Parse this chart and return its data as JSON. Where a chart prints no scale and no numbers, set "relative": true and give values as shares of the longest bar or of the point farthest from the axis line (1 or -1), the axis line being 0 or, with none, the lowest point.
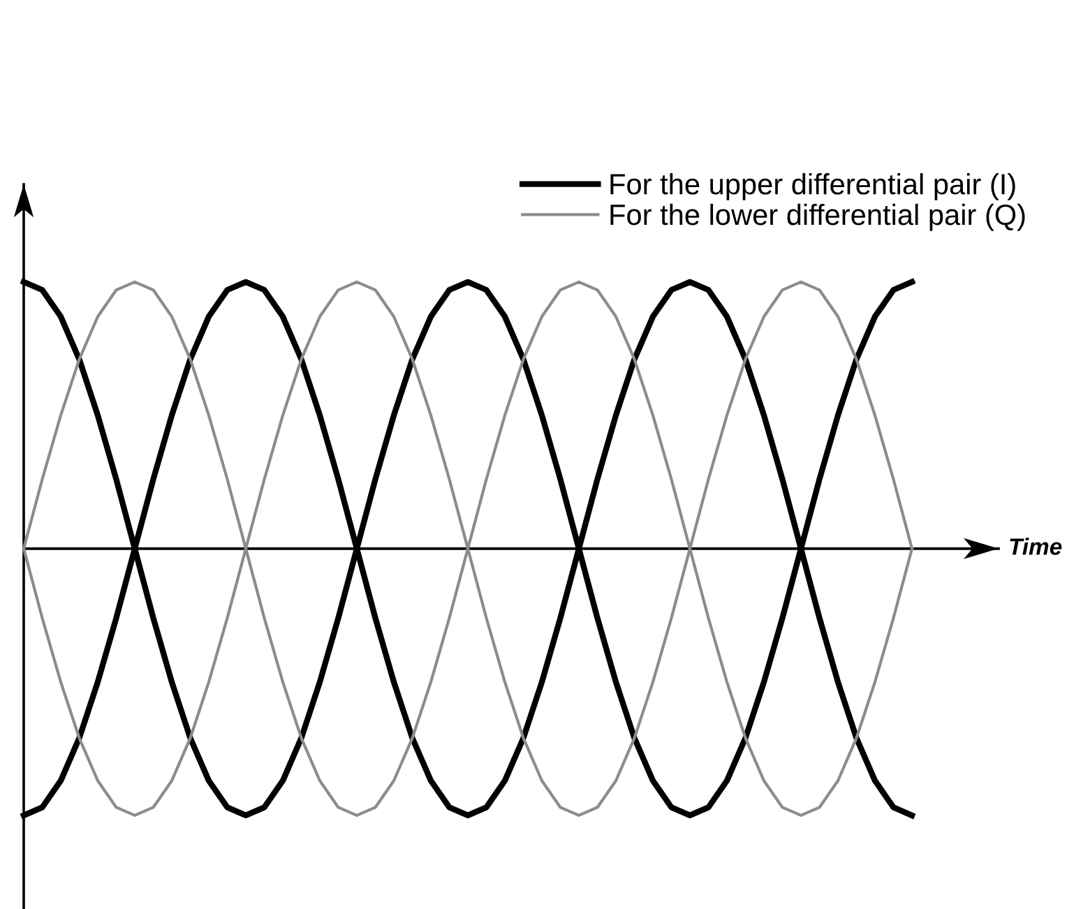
{
  "chart_data": {
    "type": "line",
    "relative": true,
    "xlabel": "Time",
    "legend": "top right",
    "categories": [
      null,
      null,
      null,
      null,
      null,
      null,
      null,
      null,
      null,
      null,
      null,
      null,
      null,
      null,
      null,
      null,
      null,
      null,
      null,
      null,
      null,
      null,
      null,
      null,
      null,
      null,
      null,
      null,
      null,
      null,
      null,
      null,
      null,
      null,
      null,
      null,
      null,
      null,
      null,
      null,
      null,
      null,
      null,
      null,
      null,
      null,
      null,
      null,
      null
    ],
    "series": [
      {
        "name": "For the upper differential pair (I)",
        "color": "#000000",
        "values": [
          1,
          0.97,
          0.87,
          0.71,
          0.5,
          0.26,
          0,
          -0.26,
          -0.5,
          -0.71,
          -0.87,
          -0.97,
          -1,
          -0.97,
          -0.87,
          -0.71,
          -0.5,
          -0.26,
          0,
          0.26,
          0.5,
          0.71,
          0.87,
          0.97,
          1,
          0.97,
          0.87,
          0.71,
          0.5,
          0.26,
          0,
          -0.26,
          -0.5,
          -0.71,
          -0.87,
          -0.97,
          -1,
          -0.97,
          -0.87,
          -0.71,
          -0.5,
          -0.26,
          0,
          0.26,
          0.5,
          0.71,
          0.87,
          0.97,
          1
        ]
      },
      {
        "color": "#000000",
        "values": [
          -1,
          -0.97,
          -0.87,
          -0.71,
          -0.5,
          -0.26,
          0,
          0.26,
          0.5,
          0.71,
          0.87,
          0.97,
          1,
          0.97,
          0.87,
          0.71,
          0.5,
          0.26,
          0,
          -0.26,
          -0.5,
          -0.71,
          -0.87,
          -0.97,
          -1,
          -0.97,
          -0.87,
          -0.71,
          -0.5,
          -0.26,
          0,
          0.26,
          0.5,
          0.71,
          0.87,
          0.97,
          1,
          0.97,
          0.87,
          0.71,
          0.5,
          0.26,
          0,
          -0.26,
          -0.5,
          -0.71,
          -0.87,
          -0.97,
          -1
        ]
      },
      {
        "name": "For the lower differential pair (Q)",
        "color": "#8c8c8c",
        "values": [
          0,
          0.26,
          0.5,
          0.71,
          0.87,
          0.97,
          1,
          0.97,
          0.87,
          0.71,
          0.5,
          0.26,
          0,
          -0.26,
          -0.5,
          -0.71,
          -0.87,
          -0.97,
          -1,
          -0.97,
          -0.87,
          -0.71,
          -0.5,
          -0.26,
          0,
          0.26,
          0.5,
          0.71,
          0.87,
          0.97,
          1,
          0.97,
          0.87,
          0.71,
          0.5,
          0.26,
          0,
          -0.26,
          -0.5,
          -0.71,
          -0.87,
          -0.97,
          -1,
          -0.97,
          -0.87,
          -0.71,
          -0.5,
          -0.26,
          0
        ]
      },
      {
        "color": "#8c8c8c",
        "values": [
          0,
          -0.26,
          -0.5,
          -0.71,
          -0.87,
          -0.97,
          -1,
          -0.97,
          -0.87,
          -0.71,
          -0.5,
          -0.26,
          0,
          0.26,
          0.5,
          0.71,
          0.87,
          0.97,
          1,
          0.97,
          0.87,
          0.71,
          0.5,
          0.26,
          0,
          -0.26,
          -0.5,
          -0.71,
          -0.87,
          -0.97,
          -1,
          -0.97,
          -0.87,
          -0.71,
          -0.5,
          -0.26,
          0,
          0.26,
          0.5,
          0.71,
          0.87,
          0.97,
          1,
          0.97,
          0.87,
          0.71,
          0.5,
          0.26,
          0
        ]
      }
    ]
  }
}
